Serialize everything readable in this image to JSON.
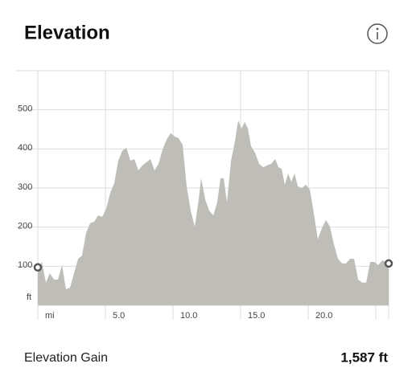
{
  "chart_data": {
    "type": "area",
    "title": "Elevation",
    "y_label": "ft",
    "color": "#bfbdb8",
    "x": [
      0,
      0.3,
      0.6,
      0.89,
      1.19,
      1.49,
      1.79,
      2.08,
      2.38,
      2.68,
      2.98,
      3.27,
      3.57,
      3.87,
      4.17,
      4.46,
      4.76,
      5.06,
      5.36,
      5.65,
      5.95,
      6.25,
      6.55,
      6.85,
      7.14,
      7.44,
      7.74,
      8.04,
      8.33,
      8.63,
      8.93,
      9.23,
      9.52,
      9.82,
      10.12,
      10.42,
      10.71,
      11.01,
      11.31,
      11.61,
      11.9,
      12.08,
      12.38,
      12.68,
      12.98,
      13.27,
      13.51,
      13.75,
      13.99,
      14.29,
      14.58,
      14.82,
      15.06,
      15.3,
      15.54,
      15.77,
      16.07,
      16.37,
      16.67,
      16.96,
      17.26,
      17.56,
      17.8,
      18.04,
      18.27,
      18.51,
      18.75,
      18.99,
      19.23,
      19.52,
      19.82,
      20.12,
      20.42,
      20.71,
      21.01,
      21.31,
      21.61,
      21.9,
      22.2,
      22.5,
      22.8,
      23.1,
      23.39,
      23.69,
      23.99,
      24.29,
      24.58,
      24.88,
      25.18,
      25.48,
      25.95
    ],
    "values": [
      97,
      111,
      58,
      82,
      66,
      66,
      103,
      41,
      45,
      82,
      119,
      127,
      185,
      210,
      214,
      230,
      226,
      247,
      288,
      312,
      370,
      395,
      403,
      370,
      374,
      345,
      358,
      366,
      374,
      345,
      362,
      399,
      423,
      440,
      432,
      427,
      411,
      304,
      242,
      201,
      271,
      325,
      271,
      242,
      230,
      263,
      325,
      325,
      263,
      370,
      419,
      473,
      452,
      469,
      452,
      407,
      390,
      362,
      353,
      358,
      362,
      374,
      353,
      349,
      308,
      337,
      316,
      337,
      304,
      300,
      308,
      296,
      234,
      169,
      197,
      218,
      201,
      156,
      119,
      107,
      107,
      119,
      119,
      66,
      58,
      58,
      111,
      111,
      103,
      115,
      107
    ],
    "xlim": [
      0,
      25.95
    ],
    "ylim": [
      0,
      600
    ],
    "xticks": [
      {
        "value": 0,
        "label": "mi"
      },
      {
        "value": 5,
        "label": "5.0"
      },
      {
        "value": 10,
        "label": "10.0"
      },
      {
        "value": 15,
        "label": "15.0"
      },
      {
        "value": 20,
        "label": "20.0"
      }
    ],
    "xgrid": [
      0,
      5,
      10,
      15,
      20,
      25
    ],
    "yticks": [
      100,
      200,
      300,
      400,
      500
    ],
    "grid": true
  },
  "summary": {
    "label": "Elevation Gain",
    "value": "1,587 ft"
  }
}
